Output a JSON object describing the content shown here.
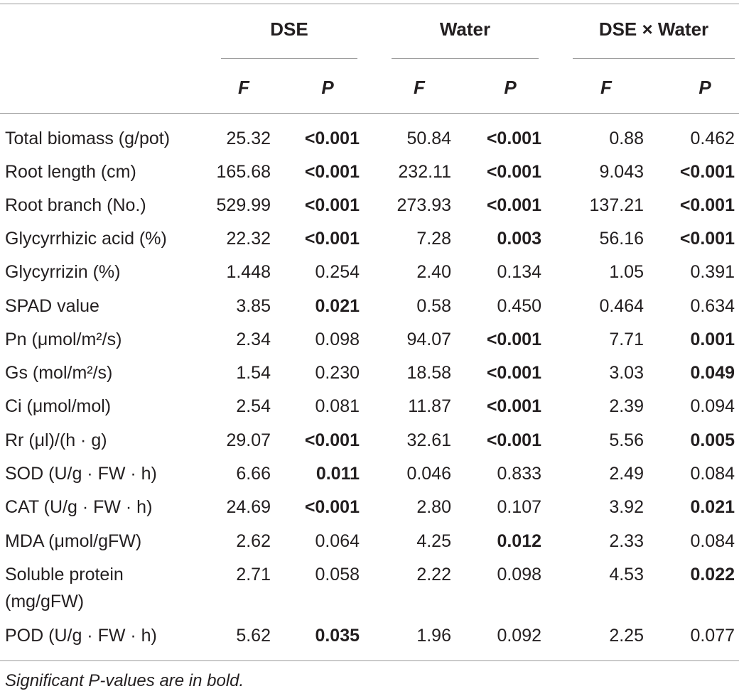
{
  "groups": [
    "DSE",
    "Water",
    "DSE × Water"
  ],
  "subheaders": [
    "F",
    "P",
    "F",
    "P",
    "F",
    "P"
  ],
  "rows": [
    {
      "label": "Total biomass (g/pot)",
      "cells": [
        {
          "v": "25.32",
          "b": false
        },
        {
          "v": "<0.001",
          "b": true
        },
        {
          "v": "50.84",
          "b": false
        },
        {
          "v": "<0.001",
          "b": true
        },
        {
          "v": "0.88",
          "b": false
        },
        {
          "v": "0.462",
          "b": false
        }
      ]
    },
    {
      "label": "Root length (cm)",
      "cells": [
        {
          "v": "165.68",
          "b": false
        },
        {
          "v": "<0.001",
          "b": true
        },
        {
          "v": "232.11",
          "b": false
        },
        {
          "v": "<0.001",
          "b": true
        },
        {
          "v": "9.043",
          "b": false
        },
        {
          "v": "<0.001",
          "b": true
        }
      ]
    },
    {
      "label": "Root branch (No.)",
      "cells": [
        {
          "v": "529.99",
          "b": false
        },
        {
          "v": "<0.001",
          "b": true
        },
        {
          "v": "273.93",
          "b": false
        },
        {
          "v": "<0.001",
          "b": true
        },
        {
          "v": "137.21",
          "b": false
        },
        {
          "v": "<0.001",
          "b": true
        }
      ]
    },
    {
      "label": "Glycyrrhizic acid (%)",
      "cells": [
        {
          "v": "22.32",
          "b": false
        },
        {
          "v": "<0.001",
          "b": true
        },
        {
          "v": "7.28",
          "b": false
        },
        {
          "v": "0.003",
          "b": true
        },
        {
          "v": "56.16",
          "b": false
        },
        {
          "v": "<0.001",
          "b": true
        }
      ]
    },
    {
      "label": "Glycyrrizin (%)",
      "cells": [
        {
          "v": "1.448",
          "b": false
        },
        {
          "v": "0.254",
          "b": false
        },
        {
          "v": "2.40",
          "b": false
        },
        {
          "v": "0.134",
          "b": false
        },
        {
          "v": "1.05",
          "b": false
        },
        {
          "v": "0.391",
          "b": false
        }
      ]
    },
    {
      "label": "SPAD value",
      "cells": [
        {
          "v": "3.85",
          "b": false
        },
        {
          "v": "0.021",
          "b": true
        },
        {
          "v": "0.58",
          "b": false
        },
        {
          "v": "0.450",
          "b": false
        },
        {
          "v": "0.464",
          "b": false
        },
        {
          "v": "0.634",
          "b": false
        }
      ]
    },
    {
      "label": "Pn (μmol/m²/s)",
      "cells": [
        {
          "v": "2.34",
          "b": false
        },
        {
          "v": "0.098",
          "b": false
        },
        {
          "v": "94.07",
          "b": false
        },
        {
          "v": "<0.001",
          "b": true
        },
        {
          "v": "7.71",
          "b": false
        },
        {
          "v": "0.001",
          "b": true
        }
      ]
    },
    {
      "label": "Gs (mol/m²/s)",
      "cells": [
        {
          "v": "1.54",
          "b": false
        },
        {
          "v": "0.230",
          "b": false
        },
        {
          "v": "18.58",
          "b": false
        },
        {
          "v": "<0.001",
          "b": true
        },
        {
          "v": "3.03",
          "b": false
        },
        {
          "v": "0.049",
          "b": true
        }
      ]
    },
    {
      "label": "Ci (μmol/mol)",
      "cells": [
        {
          "v": "2.54",
          "b": false
        },
        {
          "v": "0.081",
          "b": false
        },
        {
          "v": "11.87",
          "b": false
        },
        {
          "v": "<0.001",
          "b": true
        },
        {
          "v": "2.39",
          "b": false
        },
        {
          "v": "0.094",
          "b": false
        }
      ]
    },
    {
      "label": "Rr (μl)/(h · g)",
      "cells": [
        {
          "v": "29.07",
          "b": false
        },
        {
          "v": "<0.001",
          "b": true
        },
        {
          "v": "32.61",
          "b": false
        },
        {
          "v": "<0.001",
          "b": true
        },
        {
          "v": "5.56",
          "b": false
        },
        {
          "v": "0.005",
          "b": true
        }
      ]
    },
    {
      "label": "SOD (U/g · FW · h)",
      "cells": [
        {
          "v": "6.66",
          "b": false
        },
        {
          "v": "0.011",
          "b": true
        },
        {
          "v": "0.046",
          "b": false
        },
        {
          "v": "0.833",
          "b": false
        },
        {
          "v": "2.49",
          "b": false
        },
        {
          "v": "0.084",
          "b": false
        }
      ]
    },
    {
      "label": "CAT (U/g · FW · h)",
      "cells": [
        {
          "v": "24.69",
          "b": false
        },
        {
          "v": "<0.001",
          "b": true
        },
        {
          "v": "2.80",
          "b": false
        },
        {
          "v": "0.107",
          "b": false
        },
        {
          "v": "3.92",
          "b": false
        },
        {
          "v": "0.021",
          "b": true
        }
      ]
    },
    {
      "label": "MDA (μmol/gFW)",
      "cells": [
        {
          "v": "2.62",
          "b": false
        },
        {
          "v": "0.064",
          "b": false
        },
        {
          "v": "4.25",
          "b": false
        },
        {
          "v": "0.012",
          "b": true
        },
        {
          "v": "2.33",
          "b": false
        },
        {
          "v": "0.084",
          "b": false
        }
      ]
    },
    {
      "label": "Soluble protein",
      "label2": "(mg/gFW)",
      "cells": [
        {
          "v": "2.71",
          "b": false
        },
        {
          "v": "0.058",
          "b": false
        },
        {
          "v": "2.22",
          "b": false
        },
        {
          "v": "0.098",
          "b": false
        },
        {
          "v": "4.53",
          "b": false
        },
        {
          "v": "0.022",
          "b": true
        }
      ]
    },
    {
      "label": "POD (U/g · FW · h)",
      "cells": [
        {
          "v": "5.62",
          "b": false
        },
        {
          "v": "0.035",
          "b": true
        },
        {
          "v": "1.96",
          "b": false
        },
        {
          "v": "0.092",
          "b": false
        },
        {
          "v": "2.25",
          "b": false
        },
        {
          "v": "0.077",
          "b": false
        }
      ]
    }
  ],
  "footnote": "Significant P-values are in bold."
}
